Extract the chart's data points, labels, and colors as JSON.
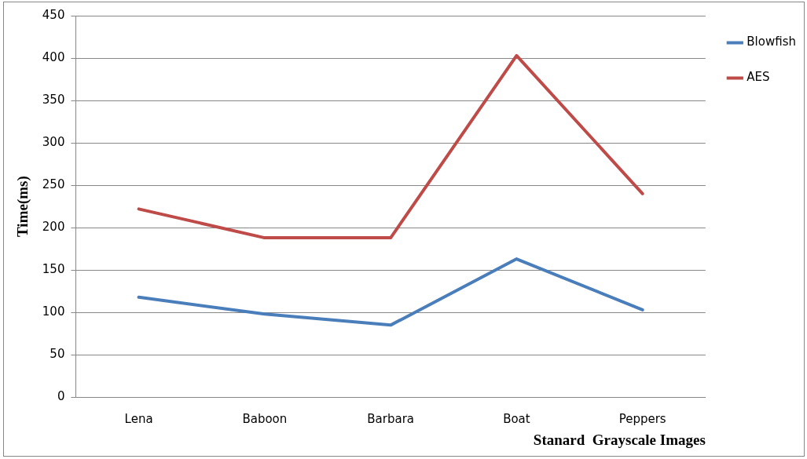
{
  "chart_data": {
    "type": "line",
    "xlabel": "Stanard  Grayscale Images",
    "ylabel": "Time(ms)",
    "categories": [
      "Lena",
      "Baboon",
      "Barbara",
      "Boat",
      "Peppers"
    ],
    "series": [
      {
        "name": "Blowfish",
        "color": "#4a7ebb",
        "values": [
          118,
          98,
          85,
          163,
          103
        ]
      },
      {
        "name": "AES",
        "color": "#be4b48",
        "values": [
          222,
          188,
          188,
          403,
          240
        ]
      }
    ],
    "ylim": [
      0,
      450
    ],
    "yticks": [
      0,
      50,
      100,
      150,
      200,
      250,
      300,
      350,
      400,
      450
    ],
    "grid": "y",
    "legend": "right",
    "marker": "none",
    "line_style": "solid"
  }
}
